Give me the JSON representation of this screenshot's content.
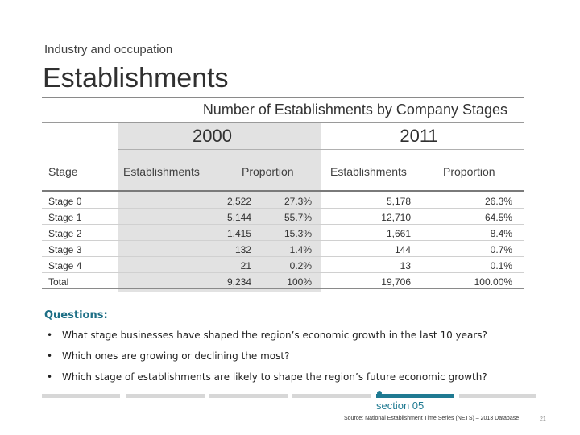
{
  "header": {
    "subtitle": "Industry and occupation",
    "title": "Establishments"
  },
  "table": {
    "caption": "Number of Establishments by Company Stages",
    "years": [
      "2000",
      "2011"
    ],
    "columns": [
      "Stage",
      "Establishments",
      "Proportion",
      "Establishments",
      "Proportion"
    ],
    "rows": [
      [
        "Stage 0",
        "2,522",
        "27.3%",
        "5,178",
        "26.3%"
      ],
      [
        "Stage 1",
        "5,144",
        "55.7%",
        "12,710",
        "64.5%"
      ],
      [
        "Stage 2",
        "1,415",
        "15.3%",
        "1,661",
        "8.4%"
      ],
      [
        "Stage 3",
        "132",
        "1.4%",
        "144",
        "0.7%"
      ],
      [
        "Stage 4",
        "21",
        "0.2%",
        "13",
        "0.1%"
      ],
      [
        "Total",
        "9,234",
        "100%",
        "19,706",
        "100.00%"
      ]
    ]
  },
  "questions": {
    "title": "Questions:",
    "bullet": "•",
    "items": [
      "What stage businesses have shaped the region’s economic growth in the last 10 years?",
      "Which ones are growing or declining the most?",
      "Which stage of establishments are likely to shape the region’s future economic growth?"
    ]
  },
  "footer": {
    "section": "section 05",
    "source": "Source: National Establishment Time Series (NETS) – 2013 Database",
    "page": "21",
    "accent_color": "#1f7a92"
  }
}
